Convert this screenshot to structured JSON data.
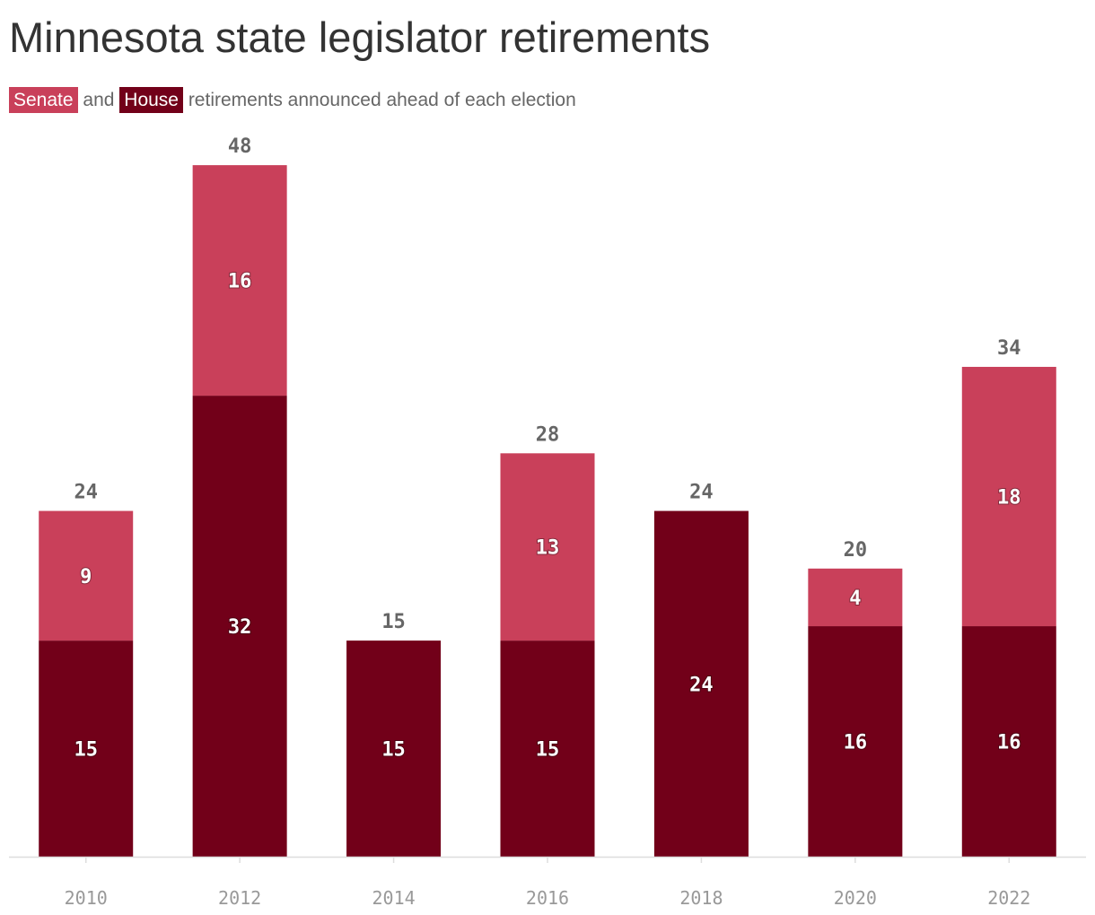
{
  "title": "Minnesota state legislator retirements",
  "subtitle": {
    "senate_chip": "Senate",
    "and_text": " and ",
    "house_chip": "House",
    "rest_text": " retirements announced ahead of each election"
  },
  "colors": {
    "senate": "#c9405a",
    "house": "#720019",
    "axis": "#dddddd",
    "total_label": "#666666",
    "tick_label": "#999999"
  },
  "chart_data": {
    "type": "bar",
    "stacked": true,
    "categories": [
      "2010",
      "2012",
      "2014",
      "2016",
      "2018",
      "2020",
      "2022"
    ],
    "series": [
      {
        "name": "House",
        "values": [
          15,
          32,
          15,
          15,
          24,
          16,
          16
        ]
      },
      {
        "name": "Senate",
        "values": [
          9,
          16,
          0,
          13,
          0,
          4,
          18
        ]
      }
    ],
    "totals": [
      24,
      48,
      15,
      28,
      24,
      20,
      34
    ],
    "ylim": [
      0,
      48
    ],
    "xlabel": "",
    "ylabel": "",
    "grid": false,
    "legend": "inline in subtitle"
  }
}
